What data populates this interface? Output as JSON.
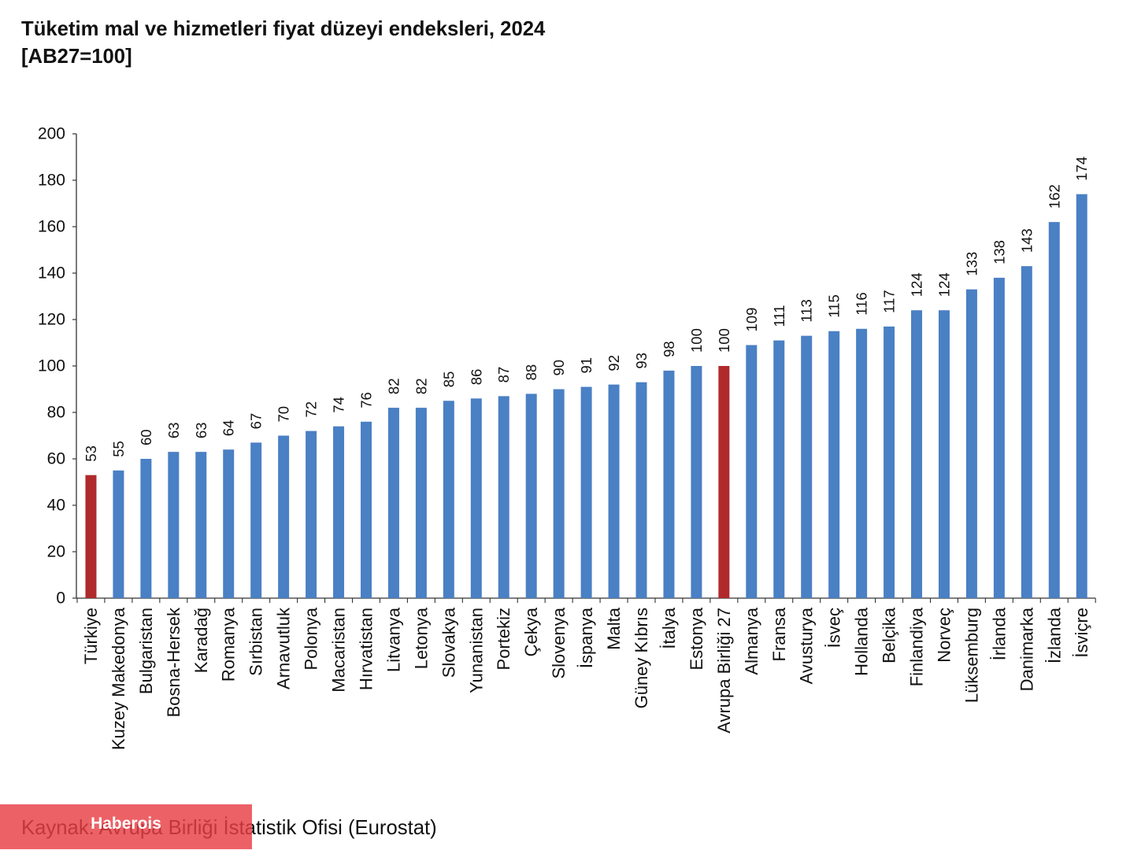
{
  "source": "Kaynak: Avrupa Birliği İstatistik Ofisi (Eurostat)",
  "watermark": "Haberois",
  "colors": {
    "bar": "#4a80c4",
    "highlight": "#b02a2c",
    "axis": "#333333",
    "watermark_bg": "#e83e44"
  },
  "chart_data": {
    "type": "bar",
    "title": "Tüketim mal ve hizmetleri fiyat düzeyi endeksleri, 2024",
    "subtitle": "[AB27=100]",
    "xlabel": "",
    "ylabel": "",
    "ylim": [
      0,
      200
    ],
    "yticks": [
      0,
      20,
      40,
      60,
      80,
      100,
      120,
      140,
      160,
      180,
      200
    ],
    "grid": false,
    "categories": [
      "Türkiye",
      "Kuzey Makedonya",
      "Bulgaristan",
      "Bosna-Hersek",
      "Karadağ",
      "Romanya",
      "Sırbistan",
      "Arnavutluk",
      "Polonya",
      "Macaristan",
      "Hırvatistan",
      "Litvanya",
      "Letonya",
      "Slovakya",
      "Yunanistan",
      "Portekiz",
      "Çekya",
      "Slovenya",
      "İspanya",
      "Malta",
      "Güney Kıbrıs",
      "İtalya",
      "Estonya",
      "Avrupa Birliği 27",
      "Almanya",
      "Fransa",
      "Avusturya",
      "İsveç",
      "Hollanda",
      "Belçika",
      "Finlandiya",
      "Norveç",
      "Lüksemburg",
      "İrlanda",
      "Danimarka",
      "İzlanda",
      "İsviçre"
    ],
    "values": [
      53,
      55,
      60,
      63,
      63,
      64,
      67,
      70,
      72,
      74,
      76,
      82,
      82,
      85,
      86,
      87,
      88,
      90,
      91,
      92,
      93,
      98,
      100,
      100,
      109,
      111,
      113,
      115,
      116,
      117,
      124,
      124,
      133,
      138,
      143,
      162,
      174
    ],
    "highlight": [
      "Türkiye",
      "Avrupa Birliği 27"
    ]
  }
}
